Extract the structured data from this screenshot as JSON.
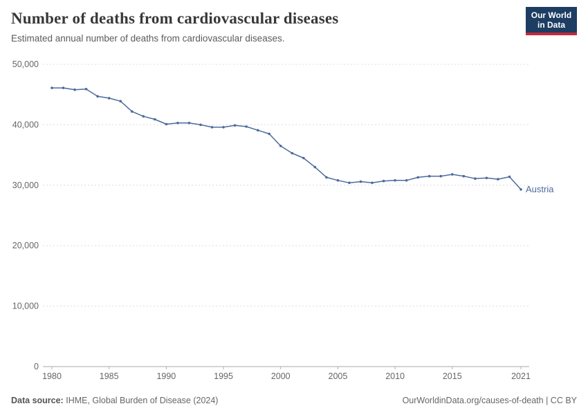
{
  "header": {
    "title": "Number of deaths from cardiovascular diseases",
    "subtitle": "Estimated annual number of deaths from cardiovascular diseases.",
    "logo": {
      "line1": "Our World",
      "line2": "in Data"
    }
  },
  "colors": {
    "line": "#4c6a9c",
    "logo_bg": "#1d3d63",
    "logo_stripe": "#c22b3a"
  },
  "chart_data": {
    "type": "line",
    "title": "Number of deaths from cardiovascular diseases",
    "subtitle": "Estimated annual number of deaths from cardiovascular diseases.",
    "x": [
      1980,
      1981,
      1982,
      1983,
      1984,
      1985,
      1986,
      1987,
      1988,
      1989,
      1990,
      1991,
      1992,
      1993,
      1994,
      1995,
      1996,
      1997,
      1998,
      1999,
      2000,
      2001,
      2002,
      2003,
      2004,
      2005,
      2006,
      2007,
      2008,
      2009,
      2010,
      2011,
      2012,
      2013,
      2014,
      2015,
      2016,
      2017,
      2018,
      2019,
      2020,
      2021
    ],
    "series": [
      {
        "name": "Austria",
        "color": "#4c6a9c",
        "values": [
          46100,
          46100,
          45800,
          45900,
          44700,
          44400,
          43900,
          42200,
          41400,
          40900,
          40100,
          40300,
          40300,
          40000,
          39600,
          39600,
          39900,
          39700,
          39100,
          38500,
          36500,
          35300,
          34500,
          33000,
          31300,
          30800,
          30400,
          30600,
          30400,
          30700,
          30800,
          30800,
          31300,
          31500,
          31500,
          31800,
          31500,
          31100,
          31200,
          31000,
          31400,
          29300
        ]
      }
    ],
    "x_ticks": [
      1980,
      1985,
      1990,
      1995,
      2000,
      2005,
      2010,
      2015,
      2021
    ],
    "y_ticks": [
      0,
      10000,
      20000,
      30000,
      40000,
      50000
    ],
    "ylim": [
      0,
      50000
    ],
    "xlabel": "",
    "ylabel": "",
    "grid": "horizontal-dashed",
    "legend": "end-of-line-label",
    "end_label": "Austria"
  },
  "footer": {
    "datasource_label": "Data source:",
    "datasource": "IHME, Global Burden of Disease (2024)",
    "link": "OurWorldinData.org/causes-of-death | CC BY"
  }
}
